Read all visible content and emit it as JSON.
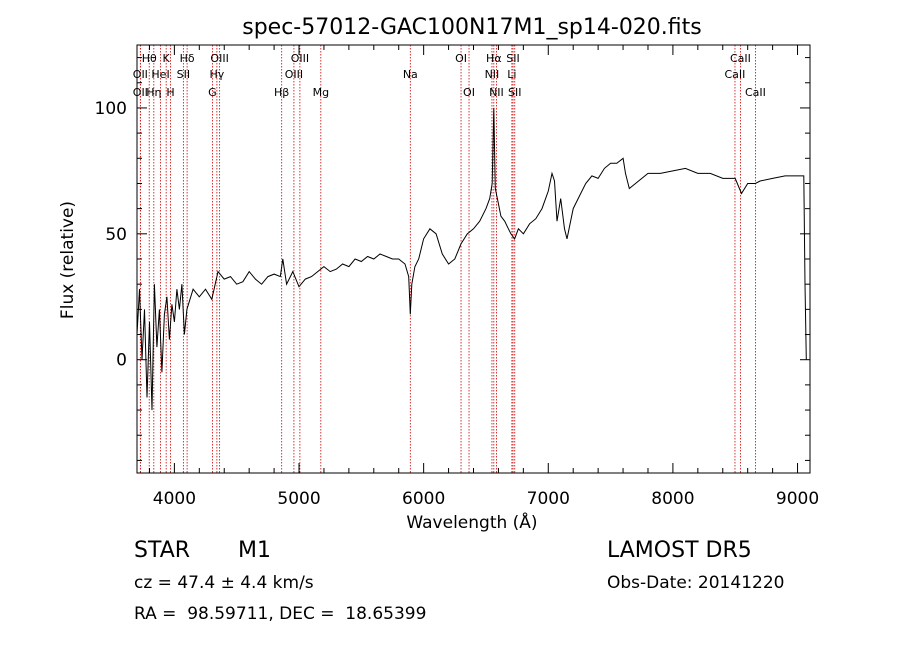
{
  "chart_data": {
    "type": "line",
    "title": "spec-57012-GAC100N17M1_sp14-020.fits",
    "xlabel": "Wavelength (Å)",
    "ylabel": "Flux (relative)",
    "xlim": [
      3700,
      9100
    ],
    "ylim": [
      -45,
      125
    ],
    "xticks": [
      4000,
      5000,
      6000,
      7000,
      8000,
      9000
    ],
    "yticks": [
      0,
      50,
      100
    ],
    "grid": false,
    "line_color": "#000000",
    "marker_color": "#cc0000",
    "spectral_lines": [
      {
        "label": "Hθ",
        "x": 3798,
        "row": 0
      },
      {
        "label": "OII",
        "x": 3727,
        "row": 1
      },
      {
        "label": "OII",
        "x": 3727,
        "row": 2
      },
      {
        "label": "K",
        "x": 3934,
        "row": 0
      },
      {
        "label": "HeI",
        "x": 3889,
        "row": 1
      },
      {
        "label": "Hη",
        "x": 3835,
        "row": 2
      },
      {
        "label": "H",
        "x": 3969,
        "row": 2
      },
      {
        "label": "Hδ",
        "x": 4102,
        "row": 0
      },
      {
        "label": "SII",
        "x": 4072,
        "row": 1
      },
      {
        "label": "OIII",
        "x": 4363,
        "row": 0
      },
      {
        "label": "Hγ",
        "x": 4341,
        "row": 1
      },
      {
        "label": "G",
        "x": 4305,
        "row": 2
      },
      {
        "label": "OIII",
        "x": 5007,
        "row": 0
      },
      {
        "label": "OIII",
        "x": 4959,
        "row": 1
      },
      {
        "label": "Hβ",
        "x": 4861,
        "row": 2
      },
      {
        "label": "Mg",
        "x": 5175,
        "row": 2
      },
      {
        "label": "Na",
        "x": 5893,
        "row": 1
      },
      {
        "label": "OI",
        "x": 6300,
        "row": 0
      },
      {
        "label": "OI",
        "x": 6364,
        "row": 2
      },
      {
        "label": "Hα",
        "x": 6563,
        "row": 0
      },
      {
        "label": "NII",
        "x": 6548,
        "row": 1
      },
      {
        "label": "NII",
        "x": 6584,
        "row": 2
      },
      {
        "label": "SII",
        "x": 6717,
        "row": 0
      },
      {
        "label": "Li",
        "x": 6708,
        "row": 1
      },
      {
        "label": "SII",
        "x": 6731,
        "row": 2
      },
      {
        "label": "CaII",
        "x": 8542,
        "row": 0
      },
      {
        "label": "CaII",
        "x": 8498,
        "row": 1
      },
      {
        "label": "CaII",
        "x": 8662,
        "row": 2
      }
    ],
    "series": [
      {
        "x": [
          3700,
          3720,
          3740,
          3760,
          3780,
          3800,
          3820,
          3840,
          3860,
          3880,
          3900,
          3920,
          3940,
          3960,
          3980,
          4000,
          4020,
          4040,
          4060,
          4080,
          4100,
          4150,
          4200,
          4250,
          4300,
          4350,
          4400,
          4450,
          4500,
          4550,
          4600,
          4650,
          4700,
          4750,
          4800,
          4850,
          4870,
          4900,
          4950,
          5000,
          5050,
          5100,
          5150,
          5200,
          5250,
          5300,
          5350,
          5400,
          5450,
          5500,
          5550,
          5600,
          5650,
          5700,
          5750,
          5800,
          5850,
          5880,
          5893,
          5905,
          5930,
          5960,
          6000,
          6050,
          6100,
          6150,
          6200,
          6250,
          6300,
          6350,
          6400,
          6450,
          6500,
          6530,
          6550,
          6563,
          6575,
          6600,
          6620,
          6650,
          6680,
          6700,
          6730,
          6760,
          6800,
          6850,
          6900,
          6950,
          7000,
          7030,
          7050,
          7070,
          7100,
          7130,
          7150,
          7200,
          7250,
          7300,
          7350,
          7400,
          7450,
          7500,
          7550,
          7600,
          7620,
          7650,
          7700,
          7800,
          7900,
          8000,
          8100,
          8200,
          8300,
          8400,
          8500,
          8550,
          8600,
          8662,
          8700,
          8800,
          8900,
          9000,
          9050,
          9060,
          9070
        ],
        "y": [
          10,
          28,
          0,
          20,
          -15,
          15,
          -20,
          30,
          5,
          20,
          -5,
          18,
          25,
          8,
          22,
          15,
          28,
          20,
          30,
          10,
          20,
          28,
          25,
          28,
          24,
          35,
          32,
          33,
          30,
          31,
          35,
          32,
          30,
          33,
          34,
          33,
          40,
          30,
          35,
          29,
          32,
          33,
          35,
          37,
          35,
          36,
          38,
          37,
          40,
          39,
          41,
          40,
          42,
          41,
          40,
          40,
          38,
          33,
          18,
          30,
          37,
          40,
          48,
          52,
          50,
          42,
          38,
          40,
          46,
          50,
          52,
          55,
          60,
          64,
          70,
          100,
          68,
          62,
          57,
          55,
          52,
          50,
          48,
          52,
          50,
          54,
          56,
          60,
          67,
          74,
          71,
          55,
          64,
          52,
          48,
          60,
          65,
          70,
          73,
          72,
          76,
          78,
          78,
          80,
          74,
          68,
          70,
          74,
          74,
          75,
          76,
          74,
          74,
          72,
          72,
          66,
          70,
          70,
          71,
          72,
          73,
          73,
          73,
          30,
          0
        ],
        "values_note": ""
      }
    ]
  },
  "info": {
    "class": "STAR",
    "subclass": "M1",
    "survey": "LAMOST DR5",
    "cz": "cz = 47.4 ± 4.4 km/s",
    "obs_date": "Obs-Date: 20141220",
    "radec": "RA =  98.59711, DEC =  18.65399"
  }
}
